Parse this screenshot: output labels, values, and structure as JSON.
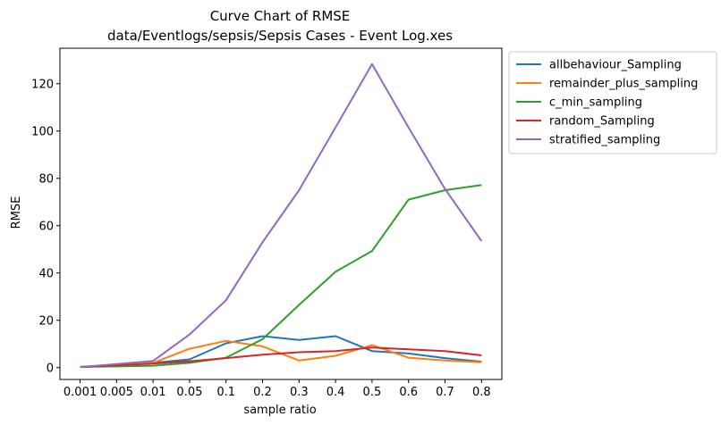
{
  "chart_data": {
    "type": "line",
    "title": "Curve Chart of RMSE",
    "subtitle": "data/Eventlogs/sepsis/Sepsis Cases - Event Log.xes",
    "xlabel": "sample ratio",
    "ylabel": "RMSE",
    "categories": [
      "0.001",
      "0.005",
      "0.01",
      "0.05",
      "0.1",
      "0.2",
      "0.3",
      "0.4",
      "0.5",
      "0.6",
      "0.7",
      "0.8"
    ],
    "yticks": [
      0,
      20,
      40,
      60,
      80,
      100,
      120
    ],
    "ylim": [
      -5,
      135
    ],
    "grid": false,
    "legend_position": "outside-right-top",
    "series": [
      {
        "name": "allbehaviour_Sampling",
        "color": "#1f77b4",
        "values": [
          0.3,
          0.8,
          2.0,
          3.5,
          10.3,
          13.3,
          11.7,
          13.3,
          7.0,
          6.0,
          4.0,
          2.5
        ]
      },
      {
        "name": "remainder_plus_sampling",
        "color": "#ff7f0e",
        "values": [
          0.3,
          0.8,
          2.0,
          8.0,
          11.3,
          9.0,
          3.0,
          5.0,
          9.5,
          4.2,
          3.0,
          2.3
        ]
      },
      {
        "name": "c_min_sampling",
        "color": "#2ca02c",
        "values": [
          0.3,
          0.5,
          0.8,
          2.0,
          4.2,
          12.0,
          26.5,
          40.5,
          49.3,
          71.0,
          75.0,
          77.2
        ]
      },
      {
        "name": "random_Sampling",
        "color": "#d62728",
        "values": [
          0.3,
          1.0,
          1.7,
          2.7,
          4.0,
          5.5,
          6.5,
          7.0,
          8.5,
          7.7,
          7.0,
          5.2
        ]
      },
      {
        "name": "stratified_sampling",
        "color": "#9467bd",
        "values": [
          0.3,
          1.5,
          2.8,
          14.0,
          28.5,
          53.0,
          75.0,
          101.5,
          128.3,
          101.5,
          75.5,
          53.5
        ]
      }
    ]
  }
}
